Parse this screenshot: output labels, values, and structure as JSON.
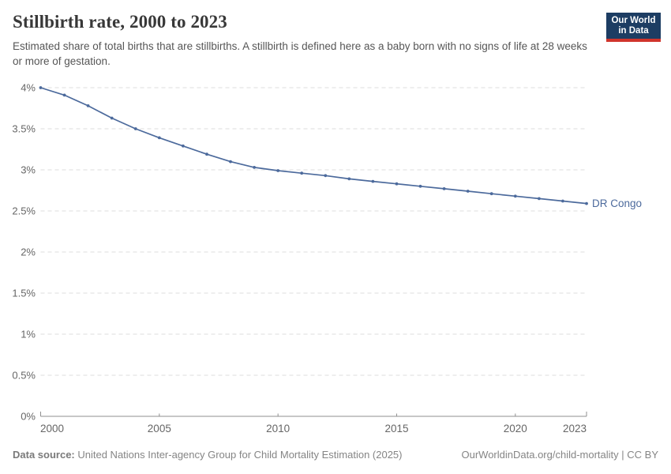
{
  "header": {
    "title": "Stillbirth rate, 2000 to 2023",
    "subtitle": "Estimated share of total births that are stillbirths. A stillbirth is defined here as a baby born with no signs of life at 28 weeks or more of gestation.",
    "logo": {
      "line1": "Our World",
      "line2": "in Data",
      "bg_color": "#1d3d63",
      "stripe_color": "#d0342c"
    }
  },
  "chart_data": {
    "type": "line",
    "title": "Stillbirth rate, 2000 to 2023",
    "x": [
      2000,
      2001,
      2002,
      2003,
      2004,
      2005,
      2006,
      2007,
      2008,
      2009,
      2010,
      2011,
      2012,
      2013,
      2014,
      2015,
      2016,
      2017,
      2018,
      2019,
      2020,
      2021,
      2022,
      2023
    ],
    "series": [
      {
        "name": "DR Congo",
        "color": "#4C6A9C",
        "values": [
          4.0,
          3.91,
          3.78,
          3.63,
          3.5,
          3.39,
          3.29,
          3.19,
          3.1,
          3.03,
          2.99,
          2.96,
          2.93,
          2.89,
          2.86,
          2.83,
          2.8,
          2.77,
          2.74,
          2.71,
          2.68,
          2.65,
          2.62,
          2.59
        ]
      }
    ],
    "unit": "%",
    "xlim": [
      2000,
      2023
    ],
    "ylim": [
      0,
      4
    ],
    "x_ticks": [
      2000,
      2005,
      2010,
      2015,
      2020,
      2023
    ],
    "y_ticks": [
      0,
      0.5,
      1,
      1.5,
      2,
      2.5,
      3,
      3.5,
      4
    ],
    "grid": "horizontal-dashed",
    "legend_position": "end-of-line-label",
    "end_label": "DR Congo",
    "colors": {
      "grid": "#dddddd",
      "axis": "#8f8f8f",
      "tick_label": "#666666"
    }
  },
  "footer": {
    "datasource_label": "Data source:",
    "datasource_text": " United Nations Inter-agency Group for Child Mortality Estimation (2025)",
    "link_text": "OurWorldinData.org/child-mortality | CC BY"
  }
}
